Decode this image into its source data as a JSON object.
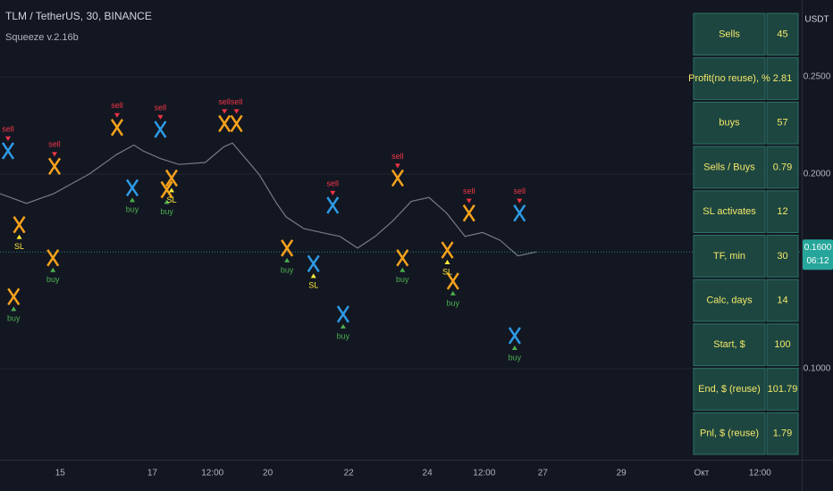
{
  "header": {
    "symbol": "TLM / TetherUS, 30, BINANCE",
    "indicator": "Squeeze v.2.16b"
  },
  "chart": {
    "currency": "USDT",
    "ylim": [
      0.0532,
      0.2895
    ],
    "xlim": [
      0,
      100
    ],
    "yticks": [
      {
        "value": 0.25,
        "label": "0.2500"
      },
      {
        "value": 0.2,
        "label": "0.2000"
      },
      {
        "value": 0.1,
        "label": "0.1000"
      }
    ],
    "xticks": [
      {
        "value": 7.5,
        "label": "15"
      },
      {
        "value": 19,
        "label": "17"
      },
      {
        "value": 26.5,
        "label": "12:00"
      },
      {
        "value": 33.4,
        "label": "20"
      },
      {
        "value": 43.5,
        "label": "22"
      },
      {
        "value": 53.3,
        "label": "24"
      },
      {
        "value": 60.4,
        "label": "12:00"
      },
      {
        "value": 67.7,
        "label": "27"
      },
      {
        "value": 77.5,
        "label": "29"
      },
      {
        "value": 87.5,
        "label": "Окт"
      },
      {
        "value": 94.8,
        "label": "12:00"
      }
    ],
    "price": {
      "x": [
        0,
        3.3,
        6.7,
        8.9,
        11.1,
        14.5,
        16.7,
        17.8,
        20,
        22.3,
        25.6,
        27.9,
        29,
        32.3,
        34.5,
        35.7,
        37.9,
        40.1,
        42.4,
        44.6,
        46.8,
        49,
        51.3,
        53.5,
        55.7,
        58,
        60.2,
        62.4,
        64.6,
        66.9
      ],
      "y": [
        0.19,
        0.185,
        0.19,
        0.195,
        0.2,
        0.21,
        0.215,
        0.212,
        0.208,
        0.205,
        0.206,
        0.214,
        0.216,
        0.2,
        0.185,
        0.178,
        0.172,
        0.17,
        0.168,
        0.162,
        0.168,
        0.176,
        0.186,
        0.188,
        0.18,
        0.168,
        0.17,
        0.166,
        0.158,
        0.16
      ],
      "color": "#787b86"
    },
    "last_price": {
      "value": 0.16,
      "label": "0.1600",
      "countdown": "06:12"
    },
    "signals": [
      {
        "label": "sell",
        "x": 1,
        "y": 0.212
      },
      {
        "label": "sell",
        "x": 6.8,
        "y": 0.204
      },
      {
        "label": "sell",
        "x": 14.6,
        "y": 0.224
      },
      {
        "label": "sell",
        "x": 20,
        "y": 0.223
      },
      {
        "label": "sell",
        "x": 28,
        "y": 0.226
      },
      {
        "label": "sell",
        "x": 29.5,
        "y": 0.226
      },
      {
        "label": "sell",
        "x": 41.5,
        "y": 0.184
      },
      {
        "label": "sell",
        "x": 49.6,
        "y": 0.198
      },
      {
        "label": "sell",
        "x": 58.5,
        "y": 0.18
      },
      {
        "label": "sell",
        "x": 64.8,
        "y": 0.18
      },
      {
        "label": "buy",
        "x": 1.7,
        "y": 0.137
      },
      {
        "label": "buy",
        "x": 6.6,
        "y": 0.157
      },
      {
        "label": "buy",
        "x": 16.5,
        "y": 0.193
      },
      {
        "label": "buy",
        "x": 20.8,
        "y": 0.192
      },
      {
        "label": "buy",
        "x": 35.8,
        "y": 0.162
      },
      {
        "label": "buy",
        "x": 42.8,
        "y": 0.128
      },
      {
        "label": "buy",
        "x": 50.2,
        "y": 0.157
      },
      {
        "label": "buy",
        "x": 56.5,
        "y": 0.145
      },
      {
        "label": "buy",
        "x": 64.2,
        "y": 0.117
      },
      {
        "label": "SL",
        "x": 2.4,
        "y": 0.174
      },
      {
        "label": "SL",
        "x": 21.4,
        "y": 0.198
      },
      {
        "label": "SL",
        "x": 39.1,
        "y": 0.154
      },
      {
        "label": "SL",
        "x": 55.8,
        "y": 0.161
      }
    ]
  },
  "table": {
    "rows": [
      [
        "Sells",
        45
      ],
      [
        "Profit(no reuse), %",
        2.81
      ],
      [
        "buys",
        57
      ],
      [
        "Sells / Buys",
        0.79
      ],
      [
        "SL activates",
        12
      ],
      [
        "TF, min",
        30
      ],
      [
        "Calc, days",
        14
      ],
      [
        "Start, $",
        100
      ],
      [
        "End, $ (reuse)",
        101.79
      ],
      [
        "Pnl, $ (reuse)",
        1.79
      ]
    ]
  }
}
